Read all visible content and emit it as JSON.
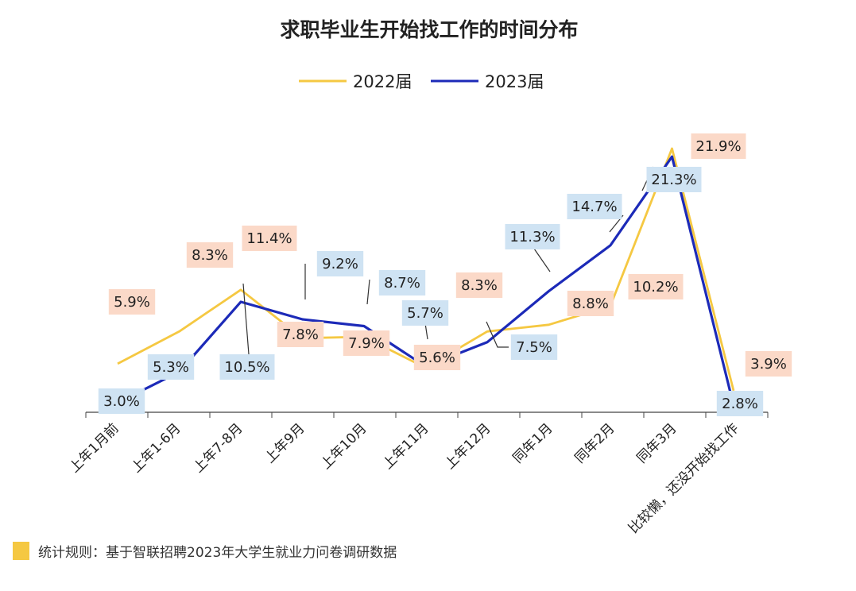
{
  "chart_data": {
    "type": "line",
    "title": "求职毕业生开始找工作的时间分布",
    "categories": [
      "上年1月前",
      "上年1-6月",
      "上年7-8月",
      "上年9月",
      "上年10月",
      "上年11月",
      "上年12月",
      "同年1月",
      "同年2月",
      "同年3月",
      "比较懒，还没开始找工作"
    ],
    "series": [
      {
        "name": "2022届",
        "color": "#f5c842",
        "values": [
          5.9,
          8.3,
          11.4,
          7.8,
          7.9,
          5.6,
          8.3,
          8.8,
          10.2,
          21.9,
          3.9
        ],
        "labels": [
          "5.9%",
          "8.3%",
          "11.4%",
          "7.8%",
          "7.9%",
          "5.6%",
          "8.3%",
          "8.8%",
          "10.2%",
          "21.9%",
          "3.9%"
        ]
      },
      {
        "name": "2023届",
        "color": "#1c2ab8",
        "values": [
          3.0,
          5.3,
          10.5,
          9.2,
          8.7,
          5.7,
          7.5,
          11.3,
          14.7,
          21.3,
          2.8
        ],
        "labels": [
          "3.0%",
          "5.3%",
          "10.5%",
          "9.2%",
          "8.7%",
          "5.7%",
          "7.5%",
          "11.3%",
          "14.7%",
          "21.3%",
          "2.8%"
        ]
      }
    ],
    "legend": "top-center",
    "grid": false,
    "xlabel": "",
    "ylabel": ""
  },
  "label_colors": {
    "2022届": "#fbd9c8",
    "2023届": "#cfe3f3"
  },
  "footnote": {
    "marker_color": "#f5c842",
    "text": "统计规则：基于智联招聘2023年大学生就业力问卷调研数据"
  }
}
